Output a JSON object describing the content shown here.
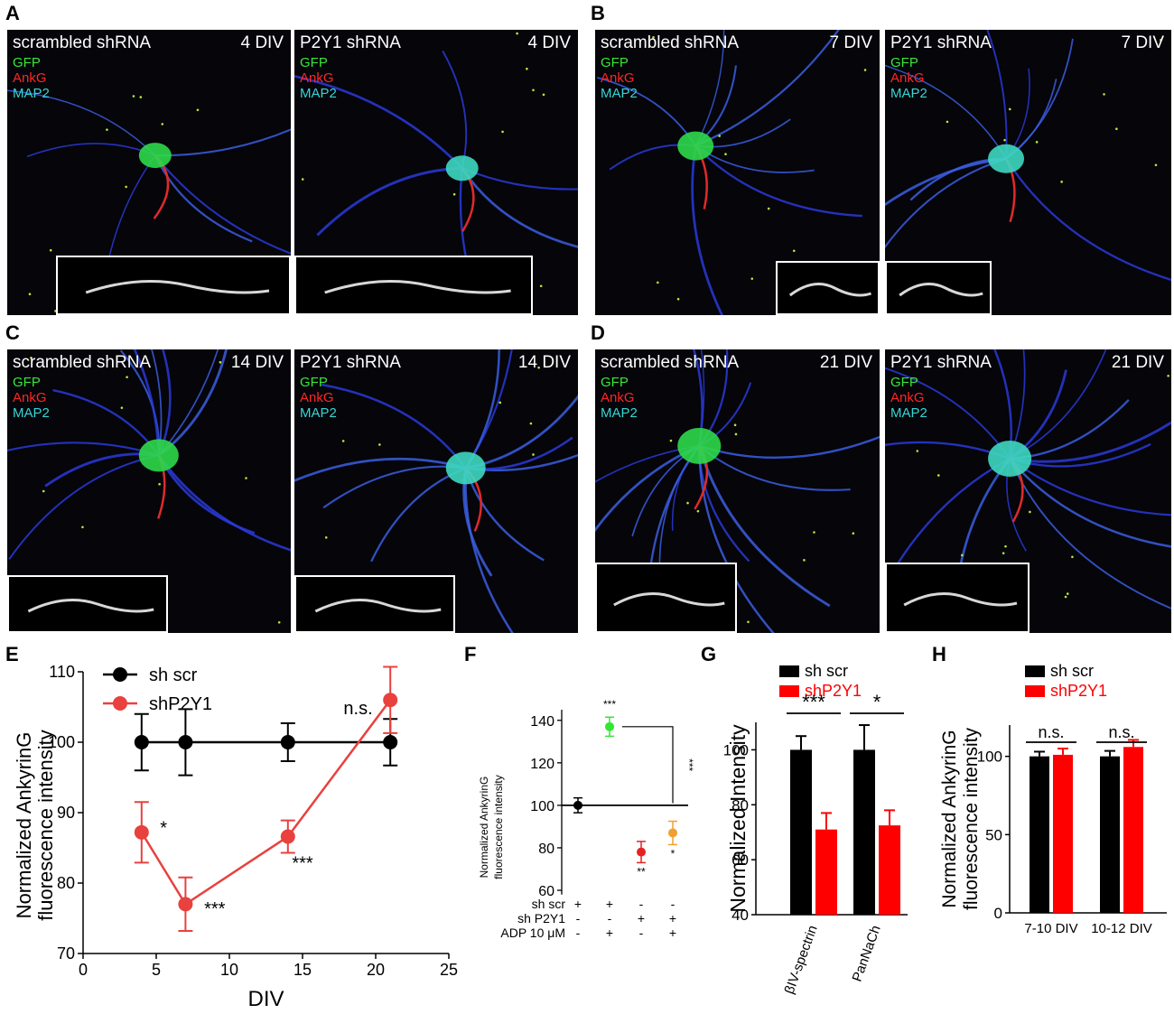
{
  "panel_letters": {
    "A": "A",
    "B": "B",
    "C": "C",
    "D": "D",
    "E": "E",
    "F": "F",
    "G": "G",
    "H": "H"
  },
  "micrographs": {
    "left_label": "scrambled shRNA",
    "right_label": "P2Y1 shRNA",
    "stains": [
      "GFP",
      "AnkG",
      "MAP2"
    ],
    "stain_colors": {
      "GFP": "#39e639",
      "AnkG": "#ff2626",
      "MAP2": "#36d6d6"
    },
    "panels": [
      {
        "letter": "A",
        "div_label": "4 DIV"
      },
      {
        "letter": "B",
        "div_label": "7 DIV"
      },
      {
        "letter": "C",
        "div_label": "14 DIV"
      },
      {
        "letter": "D",
        "div_label": "21 DIV"
      }
    ]
  },
  "chart_data": [
    {
      "panel": "E",
      "type": "line",
      "xlabel": "DIV",
      "ylabel": [
        "Normalized AnkyrinG",
        "fluorescence intensity"
      ],
      "xlim": [
        0,
        25
      ],
      "ylim": [
        70,
        110
      ],
      "xticks": [
        "0",
        "5",
        "10",
        "15",
        "20",
        "25"
      ],
      "yticks": [
        "70",
        "80",
        "90",
        "100",
        "110"
      ],
      "legend_position": "top-left",
      "series": [
        {
          "name": "sh scr",
          "color": "#000000",
          "x": [
            4,
            7,
            14,
            21
          ],
          "y": [
            100,
            100,
            100,
            100
          ],
          "err": [
            4,
            4.7,
            2.7,
            3.3
          ]
        },
        {
          "name": "shP2Y1",
          "color": "#e8413e",
          "x": [
            4,
            7,
            14,
            21
          ],
          "y": [
            87.2,
            77,
            86.6,
            106
          ],
          "err": [
            4.3,
            3.8,
            2.3,
            4.7
          ]
        }
      ],
      "annotations": [
        {
          "text": "*",
          "x": 5.5,
          "y": 87
        },
        {
          "text": "***",
          "x": 9,
          "y": 75.5
        },
        {
          "text": "***",
          "x": 15,
          "y": 82
        },
        {
          "text": "n.s.",
          "x": 18.8,
          "y": 104
        }
      ]
    },
    {
      "panel": "F",
      "type": "scatter",
      "ylabel": [
        "Normalized AnkyrinG",
        "fluorescence intensity"
      ],
      "ylim": [
        60,
        145
      ],
      "yticks": [
        "60",
        "80",
        "100",
        "120",
        "140"
      ],
      "reference_line": 100,
      "condition_rows": [
        {
          "label": "sh scr",
          "values": [
            "+",
            "+",
            "-",
            "-"
          ]
        },
        {
          "label": "sh P2Y1",
          "values": [
            "-",
            "-",
            "+",
            "+"
          ]
        },
        {
          "label": "ADP 10 μM",
          "values": [
            "-",
            "+",
            "-",
            "+"
          ]
        }
      ],
      "points": [
        {
          "y": 100,
          "err": 3.5,
          "color": "#000000",
          "label": ""
        },
        {
          "y": 137,
          "err": 4.5,
          "color": "#33e633",
          "label": "***"
        },
        {
          "y": 78,
          "err": 5,
          "color": "#e62222",
          "label": "**"
        },
        {
          "y": 87,
          "err": 5.5,
          "color": "#f0a030",
          "label": "*"
        }
      ],
      "bracket_label": "***"
    },
    {
      "panel": "G",
      "type": "bar",
      "ylabel": "Normalized Intensity",
      "ylim": [
        40,
        110
      ],
      "yticks": [
        "40",
        "60",
        "80",
        "100"
      ],
      "categories": [
        "βIV-spectrin",
        "PanNaCh"
      ],
      "legend_position": "top-left",
      "series": [
        {
          "name": "sh scr",
          "color": "#000000",
          "values": [
            100,
            100
          ],
          "err": [
            5,
            9
          ]
        },
        {
          "name": "shP2Y1",
          "color": "#ff0000",
          "values": [
            71,
            72.5
          ],
          "err": [
            6,
            5.5
          ]
        }
      ],
      "significance": [
        "***",
        "*"
      ]
    },
    {
      "panel": "H",
      "type": "bar",
      "ylabel": [
        "Normalized AnkyrinG",
        "fluorescence intensity"
      ],
      "ylim": [
        0,
        120
      ],
      "yticks": [
        "0",
        "50",
        "100"
      ],
      "categories": [
        "7-10 DIV",
        "10-12 DIV"
      ],
      "legend_position": "top-left",
      "series": [
        {
          "name": "sh scr",
          "color": "#000000",
          "values": [
            100,
            100
          ],
          "err": [
            3,
            3.5
          ]
        },
        {
          "name": "shP2Y1",
          "color": "#ff0000",
          "values": [
            101,
            106
          ],
          "err": [
            4,
            4.5
          ]
        }
      ],
      "significance": [
        "n.s.",
        "n.s."
      ]
    }
  ]
}
